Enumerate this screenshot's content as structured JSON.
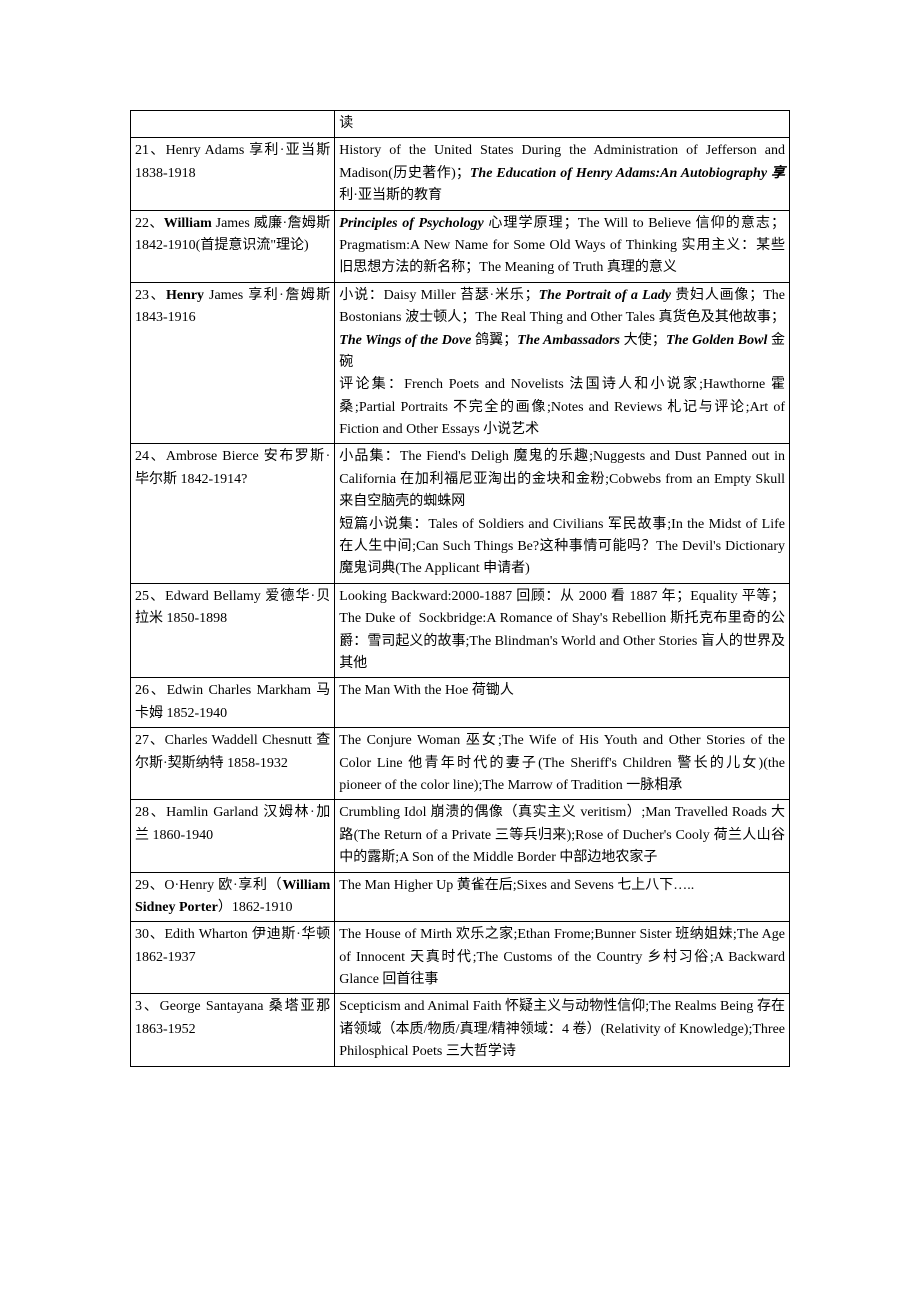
{
  "rows": [
    {
      "author_html": "",
      "works_html": "读"
    },
    {
      "author_html": "21、Henry Adams 享利·亚当斯 1838-1918",
      "works_html": "History of the United States During the Administration of Jefferson and Madison(历史著作)；<span class=\"bi\">The Education of Henry Adams:An Autobiography 享</span>利·亚当斯的教育"
    },
    {
      "author_html": "22、<span class=\"b\">William</span> James 威廉·詹姆斯 1842-1910(首提意识流\"理论)",
      "works_html": "<span class=\"bi\">Principles of Psychology</span> 心理学原理；The Will to Believe 信仰的意志；Pragmatism:A New Name for Some Old Ways of Thinking 实用主义：某些旧思想方法的新名称；The Meaning of Truth 真理的意义"
    },
    {
      "author_html": "23、<span class=\"b\">Henry</span> James 享利·詹姆斯 1843-1916",
      "works_html": "小说：Daisy Miller 苔瑟·米乐；<span class=\"bi\">The Portrait of a Lady</span> 贵妇人画像；The Bostonians 波士顿人；The Real Thing and Other Tales 真货色及其他故事；<span class=\"bi\">The Wings of the Dove</span> 鸽翼；<span class=\"bi\">The Ambassadors</span> 大使；<span class=\"bi\">The Golden Bowl</span> 金碗<br>评论集：French Poets and Novelists 法国诗人和小说家;Hawthorne 霍桑;Partial Portraits 不完全的画像;Notes and Reviews 札记与评论;Art of Fiction and Other Essays 小说艺术"
    },
    {
      "author_html": "24、Ambrose Bierce 安布罗斯·毕尔斯 1842-1914?",
      "works_html": "小品集：The Fiend's Deligh 魔鬼的乐趣;Nuggests and Dust Panned out in California 在加利福尼亚淘出的金块和金粉;Cobwebs from an Empty Skull 来自空脑壳的蜘蛛网<br>短篇小说集：Tales of Soldiers and Civilians 军民故事;In the Midst of Life 在人生中间;Can Such Things Be?这种事情可能吗？The Devil's Dictionary 魔鬼词典(The Applicant 申请者)"
    },
    {
      "author_html": "25、Edward Bellamy 爱德华·贝拉米 1850-1898",
      "works_html": "Looking Backward:2000-1887 回顾：从 2000 看 1887 年；Equality 平等；The Duke of &nbsp;Sockbridge:A Romance of Shay's Rebellion 斯托克布里奇的公爵：雪司起义的故事;The Blindman's World and Other Stories 盲人的世界及其他"
    },
    {
      "author_html": "26、Edwin Charles Markham 马卡姆 1852-1940",
      "works_html": "The Man With the Hoe 荷锄人"
    },
    {
      "author_html": "27、Charles Waddell Chesnutt 查尔斯·契斯纳特 1858-1932",
      "works_html": "The Conjure Woman 巫女;The Wife of His Youth and Other Stories of the Color Line 他青年时代的妻子(The Sheriff's Children 警长的儿女)(the pioneer of the color line);The Marrow of Tradition 一脉相承"
    },
    {
      "author_html": "28、Hamlin Garland 汉姆林·加兰 1860-1940",
      "works_html": "Crumbling Idol 崩溃的偶像（真实主义 veritism）;Man Travelled Roads 大路(The Return of a Private 三等兵归来);Rose of Ducher's Cooly 荷兰人山谷中的露斯;A Son of the Middle Border 中部边地农家子"
    },
    {
      "author_html": "29、O·Henry 欧·享利（<span class=\"b\">William Sidney Porter</span>）1862-1910",
      "works_html": "The Man Higher Up 黄雀在后;Sixes and Sevens 七上八下….."
    },
    {
      "author_html": "30、Edith Wharton 伊迪斯·华顿 1862-1937",
      "works_html": "The House of Mirth 欢乐之家;Ethan Frome;Bunner Sister 班纳姐妹;The Age of Innocent 天真时代;The Customs of the Country 乡村习俗;A Backward Glance 回首往事"
    },
    {
      "author_html": "3、George Santayana 桑塔亚那 1863-1952",
      "works_html": "Scepticism and Animal Faith 怀疑主义与动物性信仰;The Realms Being 存在诸领域（本质/物质/真理/精神领域：4 卷）(Relativity of Knowledge);Three Philosphical Poets 三大哲学诗"
    }
  ]
}
